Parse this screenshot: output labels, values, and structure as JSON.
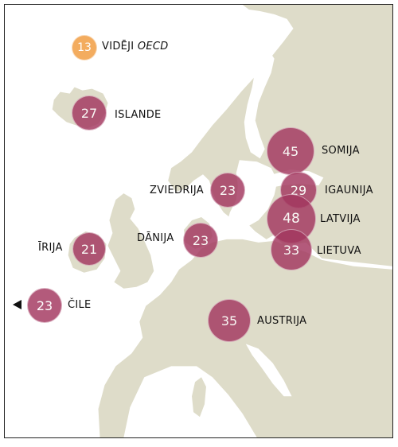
{
  "colors": {
    "land": "#dedcc9",
    "sea": "#ffffff",
    "bubble": "#a3375f",
    "bubble_oecd": "#f2a552"
  },
  "oecd": {
    "value": "13",
    "label_prefix": "VIDĒJI",
    "label_italic": "OECD"
  },
  "countries": [
    {
      "id": "islande",
      "value": "27",
      "label": "ISLANDE"
    },
    {
      "id": "somija",
      "value": "45",
      "label": "SOMIJA"
    },
    {
      "id": "zviedrija",
      "value": "23",
      "label": "ZVIEDRIJA"
    },
    {
      "id": "igaunija",
      "value": "29",
      "label": "IGAUNIJA"
    },
    {
      "id": "latvija",
      "value": "48",
      "label": "LATVIJA"
    },
    {
      "id": "lietuva",
      "value": "33",
      "label": "LIETUVA"
    },
    {
      "id": "irija",
      "value": "21",
      "label": "ĪRIJA"
    },
    {
      "id": "danija",
      "value": "23",
      "label": "DĀNIJA"
    },
    {
      "id": "cile",
      "value": "23",
      "label": "ČILE"
    },
    {
      "id": "austrija",
      "value": "35",
      "label": "AUSTRIJA"
    }
  ]
}
